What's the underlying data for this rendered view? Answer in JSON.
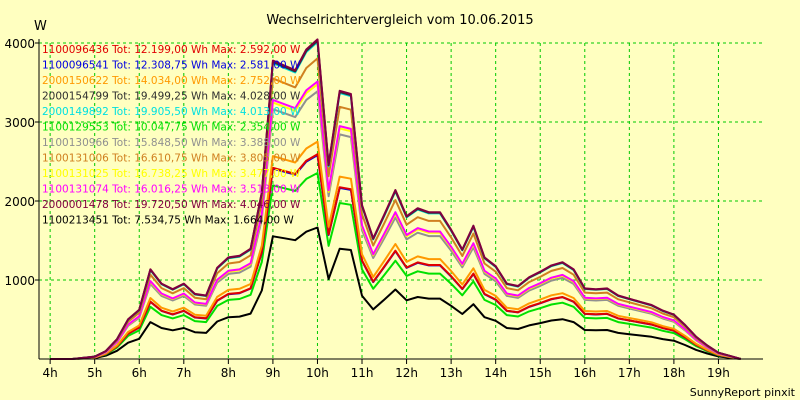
{
  "chart_data": {
    "type": "line",
    "title": "Wechselrichtervergleich vom 10.06.2015",
    "ylabel": "W",
    "xlabel": "",
    "footer": "SunnyReport pinxit",
    "xlim": [
      3.75,
      20.0
    ],
    "ylim": [
      0,
      4000
    ],
    "yticks": [
      1000,
      2000,
      3000,
      4000
    ],
    "yticklabels": [
      "1000",
      "2000",
      "3000",
      "4000"
    ],
    "xticks": [
      4,
      5,
      6,
      7,
      8,
      9,
      10,
      11,
      12,
      13,
      14,
      15,
      16,
      17,
      18,
      19
    ],
    "xticklabels": [
      "4h",
      "5h",
      "6h",
      "7h",
      "8h",
      "9h",
      "10h",
      "11h",
      "12h",
      "13h",
      "14h",
      "15h",
      "16h",
      "17h",
      "18h",
      "19h"
    ],
    "grid": true,
    "colors": {
      "background": "#ffffc0",
      "grid": "#00c800",
      "axis": "#000000"
    },
    "x": [
      4.0,
      4.5,
      5.0,
      5.25,
      5.5,
      5.75,
      6.0,
      6.25,
      6.5,
      6.75,
      7.0,
      7.25,
      7.5,
      7.75,
      8.0,
      8.25,
      8.5,
      8.75,
      9.0,
      9.25,
      9.5,
      9.75,
      10.0,
      10.25,
      10.5,
      10.75,
      11.0,
      11.25,
      11.5,
      11.75,
      12.0,
      12.25,
      12.5,
      12.75,
      13.0,
      13.25,
      13.5,
      13.75,
      14.0,
      14.25,
      14.5,
      14.75,
      15.0,
      15.25,
      15.5,
      15.75,
      16.0,
      16.25,
      16.5,
      16.75,
      17.0,
      17.25,
      17.5,
      17.75,
      18.0,
      18.25,
      18.5,
      18.75,
      19.0,
      19.25,
      19.5
    ],
    "reference_series": "2000154799",
    "reference_values": [
      0,
      0,
      30,
      100,
      250,
      500,
      620,
      1130,
      950,
      880,
      950,
      820,
      800,
      1150,
      1280,
      1300,
      1390,
      2100,
      3760,
      3700,
      3640,
      3900,
      4028,
      2450,
      3380,
      3340,
      1940,
      1520,
      1820,
      2130,
      1800,
      1900,
      1850,
      1850,
      1630,
      1380,
      1680,
      1280,
      1170,
      950,
      920,
      1030,
      1100,
      1180,
      1220,
      1130,
      890,
      880,
      890,
      800,
      760,
      720,
      680,
      610,
      560,
      430,
      280,
      170,
      80,
      40,
      0
    ],
    "series": [
      {
        "label": "1100096436 Tot: 12.199,00 Wh Max: 2.592,00 W",
        "name": "1100096436",
        "total_wh": 12199.0,
        "max_w": 2592.0,
        "color": "#e00000"
      },
      {
        "label": "1100096541 Tot: 12.308,75 Wh Max: 2.581,00 W",
        "name": "1100096541",
        "total_wh": 12308.75,
        "max_w": 2581.0,
        "color": "#0000e0"
      },
      {
        "label": "2000150622 Tot: 14.034,00 Wh Max: 2.752,00 W",
        "name": "2000150622",
        "total_wh": 14034.0,
        "max_w": 2752.0,
        "color": "#ff9900"
      },
      {
        "label": "2000154799 Tot: 19.499,25 Wh Max: 4.028,00 W",
        "name": "2000154799",
        "total_wh": 19499.25,
        "max_w": 4028.0,
        "color": "#303030"
      },
      {
        "label": "2000149892 Tot: 19.905,50 Wh Max: 4.013,00 W",
        "name": "2000149892",
        "total_wh": 19905.5,
        "max_w": 4013.0,
        "color": "#00e0e0"
      },
      {
        "label": "1100129553 Tot: 10.047,75 Wh Max: 2.354,00 W",
        "name": "1100129553",
        "total_wh": 10047.75,
        "max_w": 2354.0,
        "color": "#00e000"
      },
      {
        "label": "1100130966 Tot: 15.848,50 Wh Max: 3.388,00 W",
        "name": "1100130966",
        "total_wh": 15848.5,
        "max_w": 3388.0,
        "color": "#909090"
      },
      {
        "label": "1100131006 Tot: 16.610,75 Wh Max: 3.805,00 W",
        "name": "1100131006",
        "total_wh": 16610.75,
        "max_w": 3805.0,
        "color": "#d08020"
      },
      {
        "label": "1100131025 Tot: 16.738,25 Wh Max: 3.477,00 W",
        "name": "1100131025",
        "total_wh": 16738.25,
        "max_w": 3477.0,
        "color": "#ffff00"
      },
      {
        "label": "1100131074 Tot: 16.016,25 Wh Max: 3.513,00 W",
        "name": "1100131074",
        "total_wh": 16016.25,
        "max_w": 3513.0,
        "color": "#ff00ff"
      },
      {
        "label": "2000001478 Tot: 19.720,50 Wh Max: 4.046,00 W",
        "name": "2000001478",
        "total_wh": 19720.5,
        "max_w": 4046.0,
        "color": "#800040"
      },
      {
        "label": "1100213451 Tot: 7.534,75 Wh Max: 1.664,00 W",
        "name": "1100213451",
        "total_wh": 7534.75,
        "max_w": 1664.0,
        "color": "#000000"
      }
    ]
  }
}
